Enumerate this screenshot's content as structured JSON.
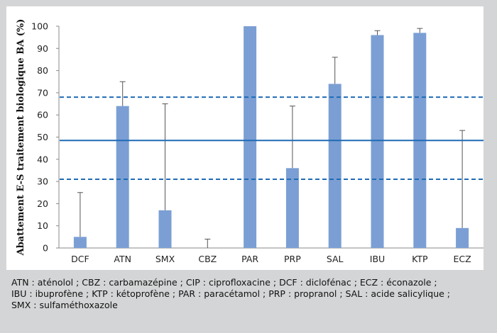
{
  "chart_data": {
    "type": "bar",
    "ylabel": "Abattement E-S traitement biologique BA (%)",
    "ylim": [
      0,
      100
    ],
    "yticks": [
      0,
      10,
      20,
      30,
      40,
      50,
      60,
      70,
      80,
      90,
      100
    ],
    "categories": [
      "DCF",
      "ATN",
      "SMX",
      "CBZ",
      "PAR",
      "PRP",
      "SAL",
      "IBU",
      "KTP",
      "ECZ"
    ],
    "values": [
      5,
      64,
      17,
      0,
      100,
      36,
      74,
      96,
      97,
      9
    ],
    "error_upper": [
      25,
      75,
      65,
      4,
      100,
      64,
      86,
      98,
      99,
      53
    ],
    "reference_lines": [
      {
        "value": 68,
        "style": "dashed"
      },
      {
        "value": 48.5,
        "style": "solid"
      },
      {
        "value": 31,
        "style": "dashed"
      }
    ],
    "bar_color": "#7b9fd4",
    "line_color": "#1f6bb5",
    "grid": false
  },
  "caption": {
    "lines": [
      "ATN : aténolol ; CBZ : carbamazépine ; CIP : ciprofloxacine ; DCF : diclofénac ; ECZ : éconazole ;",
      "IBU : ibuprofène ; KTP : kétoprofène ;  PAR : paracétamol ; PRP : propranol ; SAL : acide salicylique ;",
      "SMX : sulfaméthoxazole"
    ]
  }
}
